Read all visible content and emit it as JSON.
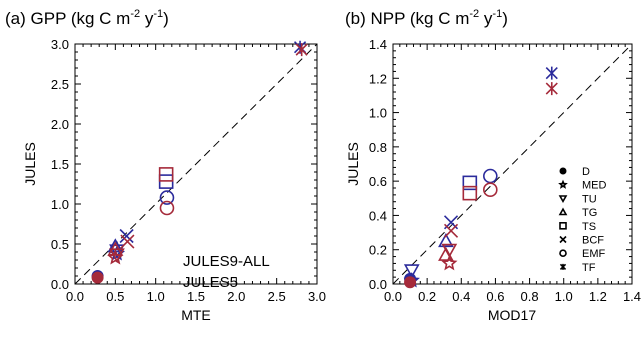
{
  "colors": {
    "jules9": "#2b2b9c",
    "jules5": "#a52a3a",
    "axis": "#000000"
  },
  "legend_key": {
    "labels": [
      "D",
      "MED",
      "TU",
      "TG",
      "TS",
      "BCF",
      "EMF",
      "TF"
    ],
    "markers": [
      "filled-circle",
      "star",
      "triangle-down",
      "triangle-up",
      "square",
      "cross",
      "circle",
      "asterisk"
    ]
  },
  "chart_data": [
    {
      "type": "scatter",
      "panel_label": "(a)",
      "title_main": "GPP (kg C m",
      "title_sup1": "-2",
      "title_mid": " y",
      "title_sup2": "-1",
      "title_end": ")",
      "xlabel": "MTE",
      "ylabel": "JULES",
      "xlim": [
        0,
        3
      ],
      "ylim": [
        0,
        3
      ],
      "xticks": [
        "0.0",
        "0.5",
        "1.0",
        "1.5",
        "2.0",
        "2.5",
        "3.0"
      ],
      "yticks": [
        "0.0",
        "0.5",
        "1.0",
        "1.5",
        "2.0",
        "2.5",
        "3.0"
      ],
      "one_to_one_line": true,
      "series_labels": [
        "JULES9-ALL",
        "JULES5"
      ],
      "series": [
        {
          "name": "JULES9-ALL",
          "points": [
            {
              "pft": "D",
              "x": 0.28,
              "y": 0.1
            },
            {
              "pft": "MED",
              "x": 0.52,
              "y": 0.38
            },
            {
              "pft": "TU",
              "x": 0.52,
              "y": 0.42
            },
            {
              "pft": "TG",
              "x": 0.5,
              "y": 0.47
            },
            {
              "pft": "TS",
              "x": 1.13,
              "y": 1.28
            },
            {
              "pft": "BCF",
              "x": 0.64,
              "y": 0.6
            },
            {
              "pft": "EMF",
              "x": 1.14,
              "y": 1.08
            },
            {
              "pft": "TF",
              "x": 2.79,
              "y": 2.96
            }
          ]
        },
        {
          "name": "JULES5",
          "points": [
            {
              "pft": "D",
              "x": 0.28,
              "y": 0.08
            },
            {
              "pft": "MED",
              "x": 0.5,
              "y": 0.33
            },
            {
              "pft": "TU",
              "x": 0.52,
              "y": 0.37
            },
            {
              "pft": "TG",
              "x": 0.5,
              "y": 0.43
            },
            {
              "pft": "TS",
              "x": 1.13,
              "y": 1.37
            },
            {
              "pft": "BCF",
              "x": 0.65,
              "y": 0.53
            },
            {
              "pft": "EMF",
              "x": 1.14,
              "y": 0.95
            },
            {
              "pft": "TF",
              "x": 2.81,
              "y": 2.93
            }
          ]
        }
      ]
    },
    {
      "type": "scatter",
      "panel_label": "(b)",
      "title_main": "NPP (kg C m",
      "title_sup1": "-2",
      "title_mid": " y",
      "title_sup2": "-1",
      "title_end": ")",
      "xlabel": "MOD17",
      "ylabel": "JULES",
      "xlim": [
        0,
        1.4
      ],
      "ylim": [
        0,
        1.4
      ],
      "xticks": [
        "0.0",
        "0.2",
        "0.4",
        "0.6",
        "0.8",
        "1.0",
        "1.2",
        "1.4"
      ],
      "yticks": [
        "0.0",
        "0.2",
        "0.4",
        "0.6",
        "0.8",
        "1.0",
        "1.2",
        "1.4"
      ],
      "one_to_one_line": true,
      "series": [
        {
          "name": "JULES9-ALL",
          "points": [
            {
              "pft": "D",
              "x": 0.1,
              "y": 0.03
            },
            {
              "pft": "MED",
              "x": 0.11,
              "y": 0.02
            },
            {
              "pft": "TU",
              "x": 0.11,
              "y": 0.08
            },
            {
              "pft": "TG",
              "x": 0.31,
              "y": 0.25
            },
            {
              "pft": "TS",
              "x": 0.45,
              "y": 0.59
            },
            {
              "pft": "BCF",
              "x": 0.34,
              "y": 0.36
            },
            {
              "pft": "EMF",
              "x": 0.57,
              "y": 0.63
            },
            {
              "pft": "TF",
              "x": 0.93,
              "y": 1.23
            }
          ]
        },
        {
          "name": "JULES5",
          "points": [
            {
              "pft": "D",
              "x": 0.1,
              "y": 0.01
            },
            {
              "pft": "MED",
              "x": 0.33,
              "y": 0.12
            },
            {
              "pft": "TU",
              "x": 0.33,
              "y": 0.2
            },
            {
              "pft": "TG",
              "x": 0.31,
              "y": 0.17
            },
            {
              "pft": "TS",
              "x": 0.45,
              "y": 0.53
            },
            {
              "pft": "BCF",
              "x": 0.34,
              "y": 0.31
            },
            {
              "pft": "EMF",
              "x": 0.57,
              "y": 0.55
            },
            {
              "pft": "TF",
              "x": 0.93,
              "y": 1.14
            }
          ]
        }
      ]
    }
  ]
}
